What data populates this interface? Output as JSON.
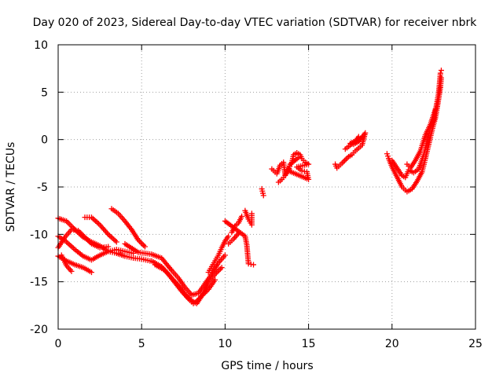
{
  "chart_data": {
    "type": "scatter",
    "title": "Day 020 of 2023, Sidereal Day-to-day VTEC variation (SDTVAR) for receiver nbrk",
    "xlabel": "GPS time / hours",
    "ylabel": "SDTVAR / TECUs",
    "xlim": [
      0,
      25
    ],
    "ylim": [
      -20,
      10
    ],
    "x_ticks": [
      0,
      5,
      10,
      15,
      20,
      25
    ],
    "y_ticks": [
      -20,
      -15,
      -10,
      -5,
      0,
      5,
      10
    ],
    "grid": true,
    "marker": "+",
    "series": [
      {
        "name": "SDTVAR",
        "color": "#ff0000",
        "segments": [
          [
            [
              0.0,
              -8.3
            ],
            [
              0.5,
              -8.6
            ],
            [
              1.0,
              -9.5
            ],
            [
              1.5,
              -10.3
            ],
            [
              2.0,
              -10.8
            ],
            [
              2.5,
              -11.2
            ],
            [
              3.0,
              -11.8
            ],
            [
              3.5,
              -12.0
            ],
            [
              4.0,
              -12.3
            ],
            [
              4.5,
              -12.5
            ],
            [
              5.0,
              -12.6
            ],
            [
              5.5,
              -12.8
            ]
          ],
          [
            [
              0.0,
              -10.2
            ],
            [
              0.5,
              -10.8
            ],
            [
              1.0,
              -11.6
            ],
            [
              1.5,
              -12.3
            ],
            [
              2.0,
              -12.7
            ],
            [
              2.5,
              -12.2
            ],
            [
              3.0,
              -11.8
            ],
            [
              3.5,
              -11.6
            ],
            [
              4.0,
              -11.8
            ],
            [
              4.5,
              -12.0
            ]
          ],
          [
            [
              0.0,
              -12.3
            ],
            [
              0.5,
              -12.8
            ],
            [
              1.0,
              -13.2
            ],
            [
              1.5,
              -13.5
            ],
            [
              2.0,
              -14.0
            ]
          ],
          [
            [
              0.0,
              -11.4
            ],
            [
              0.4,
              -10.3
            ],
            [
              0.8,
              -9.5
            ],
            [
              1.2,
              -9.6
            ],
            [
              1.6,
              -10.3
            ],
            [
              2.0,
              -11.0
            ],
            [
              2.5,
              -11.4
            ],
            [
              3.0,
              -11.3
            ]
          ],
          [
            [
              0.2,
              -12.2
            ],
            [
              0.5,
              -13.3
            ],
            [
              0.8,
              -13.9
            ]
          ],
          [
            [
              1.6,
              -8.2
            ],
            [
              2.0,
              -8.2
            ],
            [
              2.5,
              -9.0
            ],
            [
              3.0,
              -10.0
            ],
            [
              3.5,
              -10.8
            ]
          ],
          [
            [
              3.2,
              -7.3
            ],
            [
              3.6,
              -7.8
            ],
            [
              4.0,
              -8.6
            ],
            [
              4.4,
              -9.5
            ],
            [
              4.8,
              -10.6
            ],
            [
              5.2,
              -11.3
            ]
          ],
          [
            [
              4.0,
              -11.0
            ],
            [
              4.8,
              -11.9
            ],
            [
              5.6,
              -12.1
            ],
            [
              6.2,
              -12.5
            ],
            [
              6.8,
              -13.8
            ],
            [
              7.2,
              -14.6
            ],
            [
              7.6,
              -15.6
            ],
            [
              8.0,
              -16.4
            ],
            [
              8.4,
              -16.2
            ],
            [
              8.8,
              -15.2
            ],
            [
              9.2,
              -14.2
            ],
            [
              9.6,
              -13.0
            ],
            [
              10.0,
              -12.2
            ]
          ],
          [
            [
              5.6,
              -12.8
            ],
            [
              6.2,
              -13.4
            ],
            [
              6.6,
              -14.2
            ],
            [
              7.0,
              -15.1
            ],
            [
              7.4,
              -16.0
            ],
            [
              7.8,
              -16.8
            ],
            [
              8.1,
              -17.3
            ],
            [
              8.4,
              -16.9
            ],
            [
              8.7,
              -16.2
            ],
            [
              9.0,
              -15.0
            ],
            [
              9.4,
              -14.2
            ],
            [
              9.8,
              -13.5
            ]
          ],
          [
            [
              5.8,
              -13.2
            ],
            [
              6.4,
              -13.8
            ],
            [
              6.8,
              -14.6
            ],
            [
              7.2,
              -15.4
            ],
            [
              7.6,
              -16.3
            ],
            [
              8.0,
              -17.0
            ],
            [
              8.3,
              -17.3
            ],
            [
              8.6,
              -16.5
            ],
            [
              9.0,
              -15.8
            ],
            [
              9.4,
              -14.8
            ]
          ],
          [
            [
              9.0,
              -14.0
            ],
            [
              9.2,
              -13.4
            ],
            [
              9.4,
              -12.8
            ],
            [
              9.6,
              -12.2
            ],
            [
              9.8,
              -11.4
            ],
            [
              10.0,
              -10.7
            ],
            [
              10.2,
              -10.2
            ]
          ],
          [
            [
              10.4,
              -9.8
            ],
            [
              10.6,
              -9.1
            ],
            [
              10.8,
              -8.8
            ],
            [
              11.0,
              -8.1
            ]
          ],
          [
            [
              10.2,
              -11.0
            ],
            [
              10.5,
              -10.5
            ],
            [
              10.8,
              -9.9
            ]
          ],
          [
            [
              11.2,
              -7.5
            ],
            [
              11.4,
              -8.4
            ],
            [
              11.6,
              -9.0
            ],
            [
              11.6,
              -7.8
            ]
          ],
          [
            [
              10.0,
              -8.6
            ],
            [
              11.2,
              -10.2
            ],
            [
              11.3,
              -11.1
            ],
            [
              11.4,
              -13.1
            ],
            [
              11.7,
              -13.2
            ]
          ],
          [
            [
              12.2,
              -5.2
            ],
            [
              12.3,
              -5.9
            ]
          ],
          [
            [
              12.8,
              -3.1
            ],
            [
              13.1,
              -3.6
            ],
            [
              13.3,
              -2.7
            ],
            [
              13.5,
              -2.4
            ],
            [
              13.6,
              -3.7
            ],
            [
              13.8,
              -3.0
            ],
            [
              14.0,
              -2.4
            ],
            [
              14.1,
              -1.6
            ],
            [
              14.3,
              -1.4
            ],
            [
              14.5,
              -1.6
            ],
            [
              14.6,
              -2.0
            ],
            [
              14.8,
              -2.4
            ],
            [
              15.0,
              -2.6
            ],
            [
              14.3,
              -2.9
            ],
            [
              14.6,
              -3.3
            ],
            [
              14.9,
              -3.4
            ],
            [
              15.0,
              -4.2
            ],
            [
              13.8,
              -3.3
            ],
            [
              13.9,
              -2.6
            ],
            [
              14.4,
              -1.9
            ]
          ],
          [
            [
              13.2,
              -4.5
            ],
            [
              13.4,
              -4.2
            ],
            [
              13.6,
              -3.8
            ],
            [
              13.8,
              -3.2
            ]
          ],
          [
            [
              16.6,
              -2.6
            ],
            [
              16.7,
              -3.0
            ],
            [
              17.0,
              -2.5
            ],
            [
              17.4,
              -1.8
            ],
            [
              17.6,
              -1.6
            ],
            [
              17.8,
              -1.2
            ],
            [
              18.0,
              -0.9
            ],
            [
              18.2,
              -0.6
            ],
            [
              18.4,
              0.7
            ],
            [
              18.0,
              -0.2
            ],
            [
              17.7,
              -0.5
            ],
            [
              17.5,
              -0.4
            ],
            [
              18.2,
              0.2
            ]
          ],
          [
            [
              17.2,
              -1.0
            ],
            [
              17.5,
              -0.6
            ],
            [
              17.8,
              -0.2
            ],
            [
              18.0,
              0.3
            ]
          ],
          [
            [
              19.7,
              -1.5
            ],
            [
              19.8,
              -2.0
            ],
            [
              20.0,
              -2.9
            ],
            [
              20.2,
              -3.6
            ],
            [
              20.4,
              -4.3
            ],
            [
              20.6,
              -5.0
            ],
            [
              20.9,
              -5.5
            ],
            [
              21.2,
              -5.2
            ],
            [
              21.5,
              -4.4
            ],
            [
              21.8,
              -3.4
            ],
            [
              22.0,
              -2.0
            ],
            [
              22.2,
              -0.5
            ],
            [
              22.4,
              1.0
            ],
            [
              22.6,
              2.3
            ],
            [
              22.7,
              3.3
            ],
            [
              22.8,
              4.4
            ],
            [
              22.9,
              5.5
            ],
            [
              22.95,
              6.5
            ]
          ],
          [
            [
              20.0,
              -2.2
            ],
            [
              20.3,
              -3.0
            ],
            [
              20.6,
              -3.8
            ],
            [
              20.8,
              -4.0
            ],
            [
              21.0,
              -3.2
            ],
            [
              21.3,
              -3.5
            ],
            [
              21.6,
              -3.1
            ],
            [
              21.9,
              -1.6
            ],
            [
              22.1,
              -0.2
            ],
            [
              22.3,
              1.2
            ],
            [
              22.5,
              2.0
            ],
            [
              22.7,
              4.0
            ],
            [
              22.8,
              5.0
            ],
            [
              22.9,
              7.0
            ],
            [
              22.95,
              7.3
            ]
          ],
          [
            [
              20.9,
              -2.6
            ],
            [
              21.1,
              -3.0
            ],
            [
              21.4,
              -2.2
            ],
            [
              21.7,
              -1.2
            ],
            [
              22.0,
              0.5
            ],
            [
              22.3,
              1.6
            ],
            [
              22.6,
              3.2
            ]
          ]
        ]
      }
    ]
  }
}
